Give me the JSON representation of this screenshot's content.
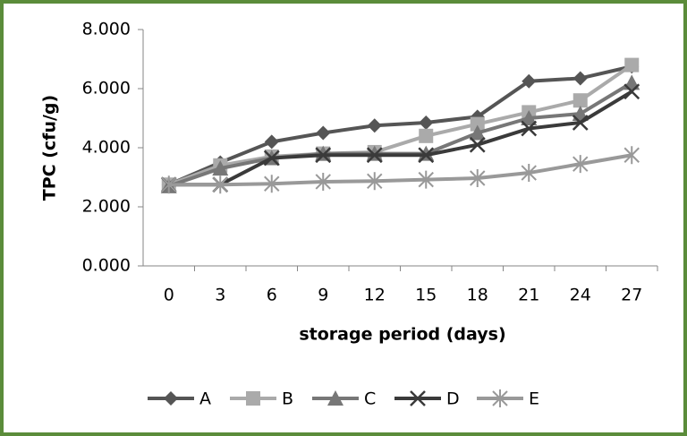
{
  "chart_data": {
    "type": "line",
    "x_label": "storage period (days)",
    "y_label": "TPC (cfu/g)",
    "categories": [
      "0",
      "3",
      "6",
      "9",
      "12",
      "15",
      "18",
      "21",
      "24",
      "27"
    ],
    "ylim": [
      0,
      8
    ],
    "yticks": [
      {
        "value": 0,
        "label": "0.000"
      },
      {
        "value": 2,
        "label": "2.000"
      },
      {
        "value": 4,
        "label": "4.000"
      },
      {
        "value": 6,
        "label": "6.000"
      },
      {
        "value": 8,
        "label": "8.000"
      }
    ],
    "grid": false,
    "legend": "bottom",
    "series": [
      {
        "name": "A",
        "color": "#555555",
        "marker": "diamond",
        "values": [
          2.75,
          3.5,
          4.2,
          4.5,
          4.75,
          4.85,
          5.05,
          6.25,
          6.35,
          6.75
        ]
      },
      {
        "name": "B",
        "color": "#aaaaaa",
        "marker": "square",
        "values": [
          2.75,
          3.4,
          3.7,
          3.8,
          3.85,
          4.4,
          4.8,
          5.2,
          5.6,
          6.8
        ]
      },
      {
        "name": "C",
        "color": "#777777",
        "marker": "triangle",
        "values": [
          2.7,
          3.3,
          3.65,
          3.8,
          3.8,
          3.8,
          4.5,
          5.0,
          5.15,
          6.2
        ]
      },
      {
        "name": "D",
        "color": "#3a3a3a",
        "marker": "x",
        "values": [
          2.75,
          2.75,
          3.65,
          3.75,
          3.75,
          3.75,
          4.1,
          4.65,
          4.85,
          5.9
        ]
      },
      {
        "name": "E",
        "color": "#999999",
        "marker": "star",
        "values": [
          2.75,
          2.75,
          2.78,
          2.85,
          2.87,
          2.92,
          2.97,
          3.15,
          3.45,
          3.75
        ]
      }
    ]
  }
}
